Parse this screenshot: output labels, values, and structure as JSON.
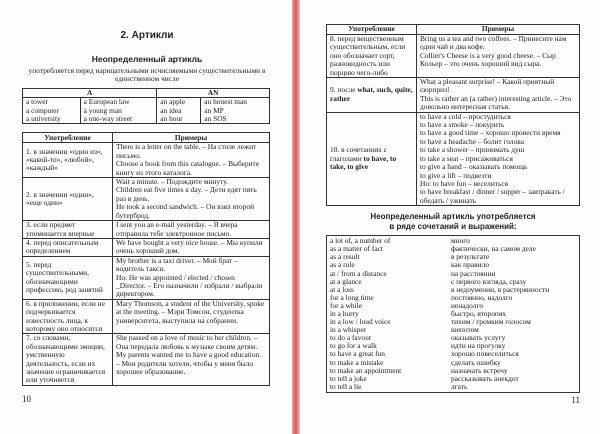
{
  "left_page": {
    "chapter_title": "2. Артикли",
    "section_title": "Неопределенный артикль",
    "intro": "употребляется перед нарицательными исчисляемыми существительными в единственном числе",
    "article_table": {
      "headers": [
        "A",
        "AN"
      ],
      "columns": [
        [
          "a tower",
          "a computer",
          "a university"
        ],
        [
          "a European law",
          "a young man",
          "a one-way street"
        ],
        [
          "an apple",
          "an idea",
          "an hour"
        ],
        [
          "an honest man",
          "an MP",
          "an SOS"
        ]
      ]
    },
    "usage_table": {
      "headers": [
        "Употребление",
        "Примеры"
      ],
      "rows": [
        {
          "usage": "1. в значении «один из», «какой-то», «любой», «каждый»",
          "examples": [
            "There is a letter on the table. – На столе лежит письмо.",
            "Choose a book from this catalogue. – Выберите книгу из этого каталога."
          ]
        },
        {
          "usage": "2. в значении «один», «еще один»",
          "examples": [
            "Wait a minute. – Подождите минуту.",
            "Children eat five times a day. – Дети едят пять раз в день.",
            "He took a second sandwich. – Он взял второй бутерброд."
          ]
        },
        {
          "usage": "3. если предмет упоминается впервые",
          "examples": [
            "I sent you an e-mail yesterday. – Я вчера отправила тебе электронное письмо."
          ]
        },
        {
          "usage": "4. перед описательным определением",
          "examples": [
            "We have bought a very nice house. – Мы купили очень хороший дом."
          ]
        },
        {
          "usage": "5. перед существительными, обозначающими профессию, род занятий",
          "examples": [
            "My brother is a taxi driver. – Мой брат – водитель такси.",
            "Но: He was appointed / elected / chosen _Director. – Его назначили / избрали / выбрали директором."
          ]
        },
        {
          "usage": "6. в приложении, если не подчеркивается известность лица, к которому оно относится",
          "examples": [
            "Mary Thomson, a student of the University, spoke at the meeting. – Мэри Томсон, студентка университета, выступила на собрании."
          ]
        },
        {
          "usage": "7. со словами, обозначающими эмоции, умственную деятельность, если их значение ограничивается или уточняется",
          "examples": [
            "She passed on a love of music to her children. – Она передала любовь к музыке своим детям.",
            "My parents wanted me to have a good education. – Мои родители хотели, чтобы у меня было хорошее образование."
          ]
        }
      ]
    },
    "page_number": "10"
  },
  "right_page": {
    "usage_table": {
      "headers": [
        "Употребление",
        "Примеры"
      ],
      "rows": [
        {
          "usage": "8. перед вещественным существительным, если оно обозначает сорт, разновидность или порцию чего-либо",
          "examples": [
            "Bring us a tea and two coffees. – Принесите нам один чай и два кофе.",
            "Collier's Cheese is a very good cheese. – Сыр Кольер – это очень хороший вид сыра."
          ]
        },
        {
          "usage_prefix": "9. после ",
          "usage_bold": "what, such, quite, rather",
          "examples": [
            "What a pleasant surprise! – Какой приятный сюрприз!",
            "This is rather an (a rather) interesting article. – Это довольно интересная статья."
          ]
        },
        {
          "usage_prefix": "10. в сочетаниях с глаголами ",
          "usage_bold": "to have, to take, to give",
          "examples": [
            "to have a cold – простудиться",
            "to have a smoke – покурить",
            "to have a good time – хорошо провести время",
            "to have a headache – болит голова",
            "to take a shower – принимать душ",
            "to take a seat – присаживаться",
            "to give a hand – оказывать помощь",
            "to give a lift – подвезти",
            "Но: to have fun – веселиться",
            "to have breakfast / dinner / supper – завтракать / обедать / ужинать"
          ]
        }
      ]
    },
    "phrases_heading": [
      "Неопределенный артикль употребляется",
      "в ряде сочетаний и выражений:"
    ],
    "phrases": [
      [
        "a lot of, a number of",
        "много"
      ],
      [
        "as a matter of fact",
        "фактически, на самом деле"
      ],
      [
        "as a result",
        "в результате"
      ],
      [
        "as a rule",
        "как правило"
      ],
      [
        "at / from a distance",
        "на расстоянии"
      ],
      [
        "at a glance",
        "с первого взгляда, сразу"
      ],
      [
        "at a loss",
        "в недоумении, в растерянности"
      ],
      [
        "for a long time",
        "постоянно, надолго"
      ],
      [
        "for a while",
        "ненадолго"
      ],
      [
        "in a hurry",
        "быстро, второпях"
      ],
      [
        "in a low / loud voice",
        "тихим / громким голосом"
      ],
      [
        "in a whisper",
        "шепотом"
      ],
      [
        "to do a favour",
        "оказывать услугу"
      ],
      [
        "to go for a walk",
        "идти на прогулку"
      ],
      [
        "to have a great fun",
        "хорошо повеселиться"
      ],
      [
        "to make a mistake",
        "сделать ошибку"
      ],
      [
        "to make an appointment",
        "назначать встречу"
      ],
      [
        "to tell a joke",
        "рассказывать анекдот"
      ],
      [
        "to tell a lie",
        "лгать"
      ]
    ],
    "page_number": "11"
  },
  "colors": {
    "spine": "#d55a5a",
    "paper": "#fdfdfb",
    "text": "#222222"
  }
}
